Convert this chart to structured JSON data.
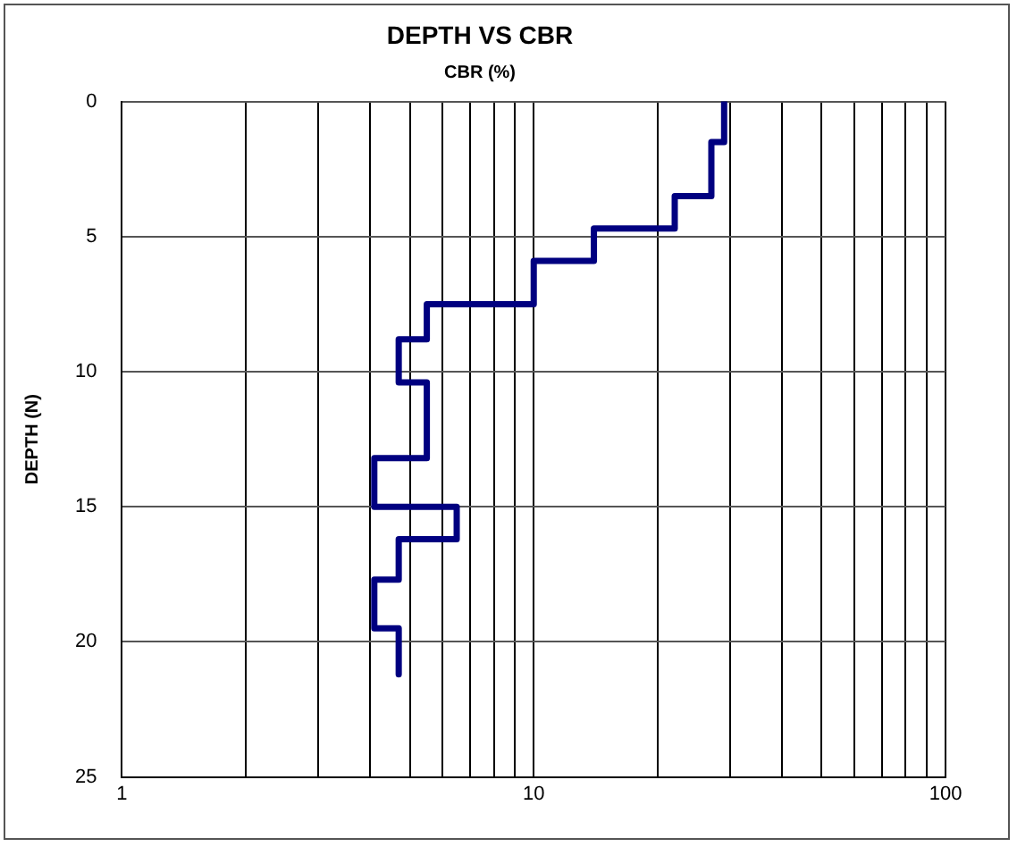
{
  "chart_data": {
    "type": "line",
    "title": "DEPTH VS CBR",
    "xlabel": "CBR (%)",
    "ylabel": "DEPTH (N)",
    "log": "x",
    "xlim": [
      1,
      100
    ],
    "xticks": [
      1,
      {
        "value": 2,
        "label": null
      },
      {
        "value": 3,
        "label": null
      },
      {
        "value": 4,
        "label": null
      },
      {
        "value": 5,
        "label": null
      },
      {
        "value": 6,
        "label": null
      },
      {
        "value": 7,
        "label": null
      },
      {
        "value": 8,
        "label": null
      },
      {
        "value": 9,
        "label": null
      },
      10,
      {
        "value": 20,
        "label": null
      },
      {
        "value": 30,
        "label": null
      },
      {
        "value": 40,
        "label": null
      },
      {
        "value": 50,
        "label": null
      },
      {
        "value": 60,
        "label": null
      },
      {
        "value": 70,
        "label": null
      },
      {
        "value": 80,
        "label": null
      },
      {
        "value": 90,
        "label": null
      },
      100
    ],
    "ylim": [
      25,
      0
    ],
    "yticks": [
      0,
      5,
      10,
      15,
      20,
      25
    ],
    "grid": true,
    "legend": false,
    "marker": "none",
    "line_style": "solid",
    "series": [
      {
        "color": "#000080",
        "x": [
          29,
          29,
          27,
          27,
          22,
          22,
          14,
          14,
          10,
          10,
          5.5,
          5.5,
          4.7,
          4.7,
          5.5,
          5.5,
          4.1,
          4.1,
          6.5,
          6.5,
          4.7,
          4.7,
          4.1,
          4.1,
          4.7,
          4.7
        ],
        "values": [
          0,
          1.5,
          1.5,
          3.5,
          3.5,
          4.7,
          4.7,
          5.9,
          5.9,
          7.5,
          7.5,
          8.8,
          8.8,
          10.4,
          10.4,
          13.2,
          13.2,
          15,
          15,
          16.2,
          16.2,
          17.7,
          17.7,
          19.5,
          19.5,
          21.2
        ]
      }
    ]
  }
}
